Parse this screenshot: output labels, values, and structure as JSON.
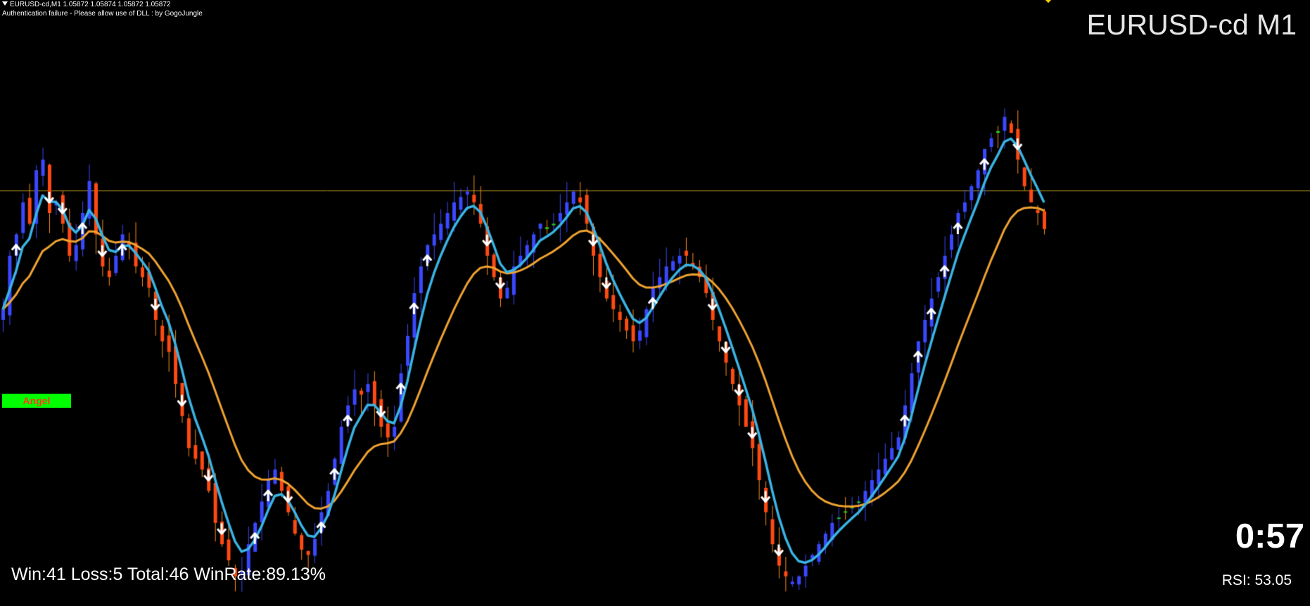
{
  "header": {
    "quote_line": "EURUSD-cd,M1  1.05872 1.05874 1.05872 1.05872",
    "auth_message": "Authentication failure - Please allow use of DLL : by GogoJungle"
  },
  "symbol_title": "EURUSD-cd M1",
  "badge": {
    "label": "Angel",
    "bg_color": "#00ff00",
    "text_color": "#ff3b1f"
  },
  "stats": {
    "text": "Win:41 Loss:5 Total:46 WinRate:89.13%"
  },
  "timer": "0:57",
  "rsi": "RSI: 53.05",
  "colors": {
    "background": "#000000",
    "bull_candle": "#3a48ff",
    "bear_candle": "#ff4a12",
    "neutral_candle": "#22cc22",
    "wick_orange": "#ff8c1a",
    "ma_fast": "#3ab4e6",
    "ma_slow": "#f0a330",
    "horizontal_line": "#c8a020",
    "arrows": "#ffffff"
  },
  "chart_data": {
    "type": "candlestick",
    "symbol": "EURUSD-cd",
    "timeframe": "M1",
    "last_close": 1.05872,
    "price_line": 1.05872,
    "y_range": [
      0,
      100
    ],
    "closes": [
      52,
      62,
      66,
      72,
      68,
      78,
      80,
      70,
      72,
      68,
      62,
      64,
      70,
      76,
      66,
      60,
      58,
      62,
      66,
      64,
      60,
      58,
      56,
      50,
      46,
      44,
      38,
      32,
      26,
      24,
      22,
      18,
      12,
      8,
      5,
      2,
      3,
      8,
      12,
      16,
      20,
      22,
      18,
      14,
      10,
      7,
      6,
      9,
      14,
      18,
      24,
      30,
      34,
      37,
      36,
      38,
      34,
      30,
      28,
      30,
      40,
      47,
      55,
      60,
      64,
      66,
      68,
      70,
      72,
      73,
      74,
      72,
      68,
      62,
      58,
      54,
      56,
      60,
      62,
      64,
      66,
      68,
      67,
      68,
      70,
      72,
      74,
      72,
      68,
      62,
      58,
      54,
      52,
      50,
      48,
      46,
      48,
      52,
      56,
      58,
      60,
      61,
      62,
      62,
      60,
      58,
      55,
      50,
      46,
      42,
      38,
      34,
      30,
      26,
      20,
      14,
      8,
      4,
      2,
      1,
      2,
      4,
      6,
      8,
      10,
      12,
      13,
      14,
      15,
      16,
      18,
      20,
      22,
      24,
      26,
      28,
      34,
      40,
      46,
      50,
      54,
      58,
      62,
      66,
      70,
      72,
      75,
      78,
      82,
      84,
      85,
      88,
      85,
      80,
      75,
      72,
      70,
      67
    ],
    "arrows": {
      "up_count": 22,
      "down_count": 18,
      "labels": [
        "up",
        "down"
      ]
    },
    "moving_averages": [
      {
        "color": "#3ab4e6",
        "role": "fast"
      },
      {
        "color": "#f0a330",
        "role": "slow"
      }
    ]
  }
}
